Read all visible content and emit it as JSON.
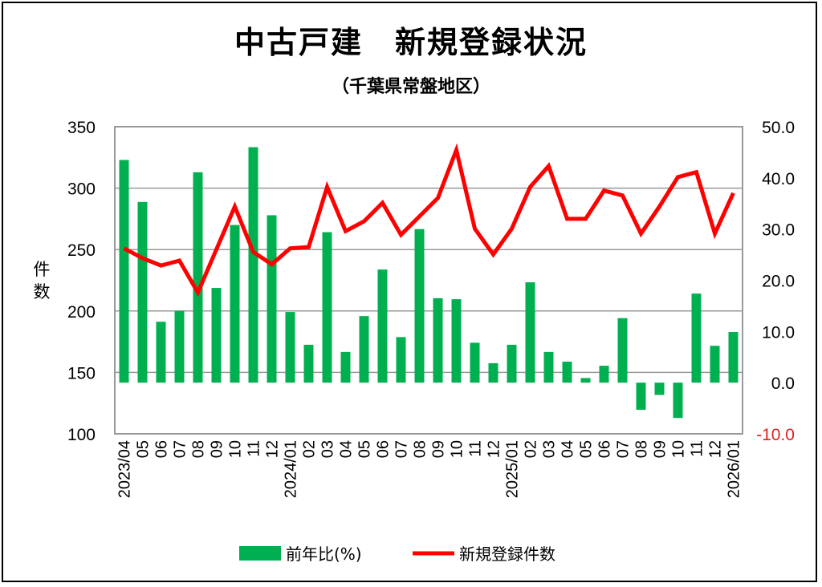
{
  "chart_data": {
    "type": "bar+line",
    "title": "中古戸建　新規登録状況",
    "subtitle": "（千葉県常盤地区）",
    "ylabel": "件数",
    "categories": [
      "2023/04",
      "05",
      "06",
      "07",
      "08",
      "09",
      "10",
      "11",
      "12",
      "2024/01",
      "02",
      "03",
      "04",
      "05",
      "06",
      "07",
      "08",
      "09",
      "10",
      "11",
      "12",
      "2025/01",
      "02",
      "03",
      "04",
      "05",
      "06",
      "07",
      "08",
      "09",
      "10",
      "11",
      "12",
      "2026/01"
    ],
    "left_axis": {
      "min": 100,
      "max": 350,
      "ticks": [
        "100",
        "150",
        "200",
        "250",
        "300",
        "350"
      ]
    },
    "right_axis": {
      "min": -10,
      "max": 50,
      "ticks": [
        "-10.0",
        "0.0",
        "10.0",
        "20.0",
        "30.0",
        "40.0",
        "50.0"
      ],
      "negative_color": "#e02020"
    },
    "series": [
      {
        "name": "前年比(%)",
        "type": "bar",
        "axis": "right",
        "color": "#00b050",
        "values": [
          43.5,
          35.3,
          11.9,
          14.0,
          41.1,
          18.5,
          30.8,
          46.0,
          32.7,
          13.8,
          7.4,
          29.4,
          6.0,
          13.0,
          22.1,
          8.9,
          30.0,
          16.5,
          16.3,
          7.8,
          3.8,
          7.4,
          19.6,
          6.0,
          4.1,
          0.9,
          3.3,
          12.6,
          -5.3,
          -2.4,
          -6.9,
          17.4,
          7.2,
          9.9
        ]
      },
      {
        "name": "新規登録件数",
        "type": "line",
        "axis": "left",
        "color": "#ff0000",
        "values": [
          251,
          243,
          237,
          241,
          215,
          250,
          285,
          248,
          238,
          251,
          252,
          301,
          265,
          273,
          288,
          262,
          277,
          292,
          331,
          267,
          246,
          267,
          301,
          318,
          275,
          275,
          298,
          294,
          263,
          285,
          309,
          313,
          263,
          296
        ]
      }
    ],
    "legend": {
      "position": "bottom",
      "labels": [
        "前年比(%)",
        "新規登録件数"
      ]
    },
    "grid": true
  }
}
